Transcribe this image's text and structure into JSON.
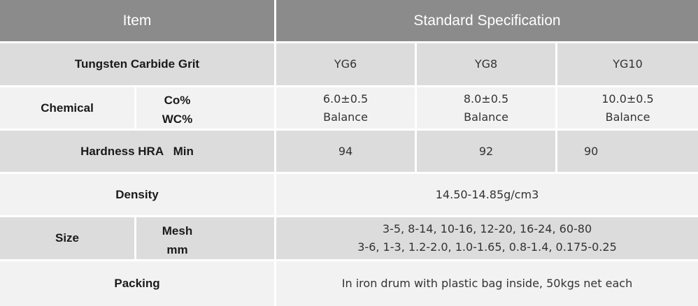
{
  "header": {
    "item": "Item",
    "standard": "Standard Specification"
  },
  "grit": {
    "label": "Tungsten Carbide Grit",
    "grades": [
      "YG6",
      "YG8",
      "YG10"
    ]
  },
  "chemical": {
    "label": "Chemical",
    "sub": [
      "Co%",
      "WC%"
    ],
    "co": [
      "6.0±0.5",
      "8.0±0.5",
      "10.0±0.5"
    ],
    "wc": [
      "Balance",
      "Balance",
      "Balance"
    ]
  },
  "hardness": {
    "label": "Hardness HRA   Min",
    "values": [
      "94",
      "92",
      "90"
    ]
  },
  "density": {
    "label": "Density",
    "value": "14.50-14.85g/cm3"
  },
  "size": {
    "label": "Size",
    "sub": [
      "Mesh",
      "mm"
    ],
    "mesh": "3-5, 8-14, 10-16, 12-20, 16-24, 60-80",
    "mm": "3-6, 1-3, 1.2-2.0, 1.0-1.65, 0.8-1.4, 0.175-0.25"
  },
  "packing": {
    "label": "Packing",
    "value": "In iron drum with plastic bag inside, 50kgs net each"
  }
}
